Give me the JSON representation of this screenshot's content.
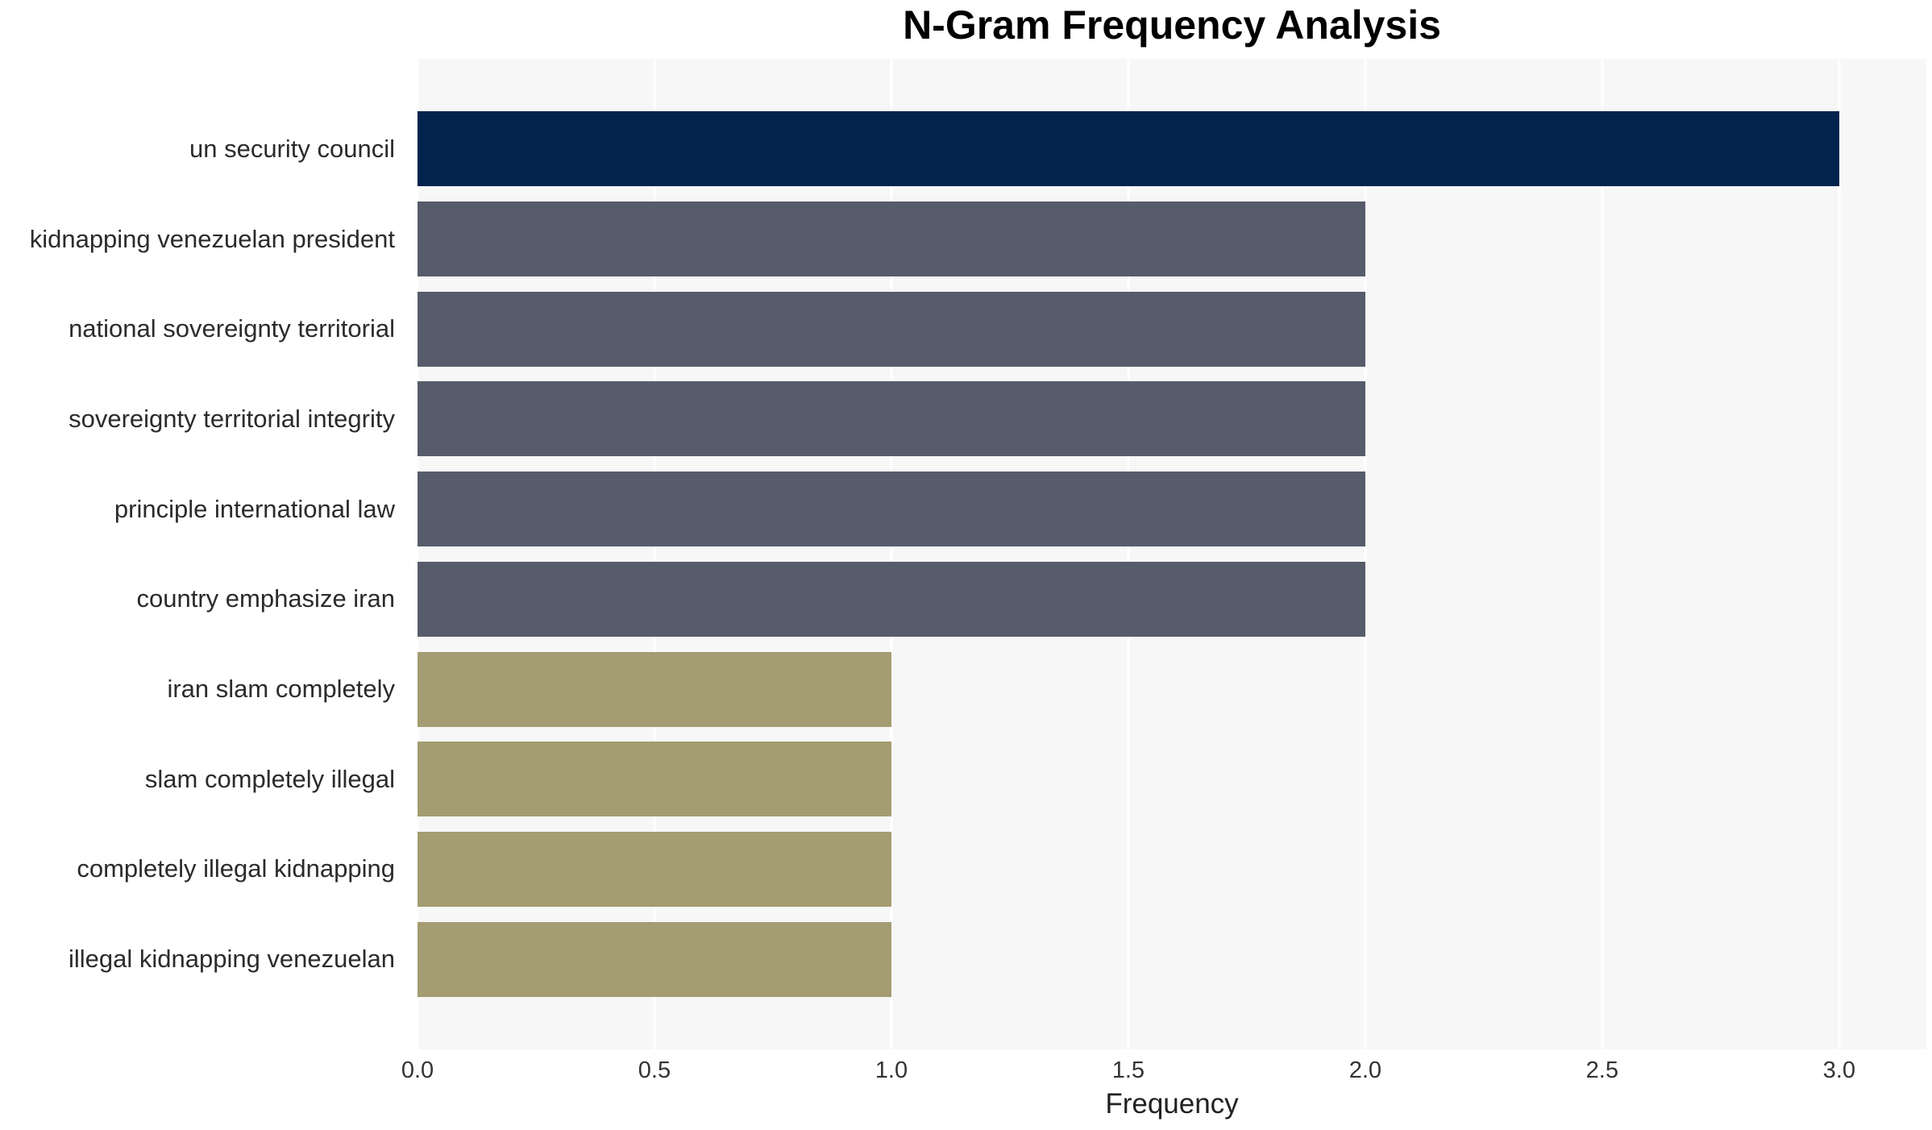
{
  "chart_data": {
    "type": "bar",
    "orientation": "horizontal",
    "title": "N-Gram Frequency Analysis",
    "xlabel": "Frequency",
    "ylabel": "",
    "categories": [
      "un security council",
      "kidnapping venezuelan president",
      "national sovereignty territorial",
      "sovereignty territorial integrity",
      "principle international law",
      "country emphasize iran",
      "iran slam completely",
      "slam completely illegal",
      "completely illegal kidnapping",
      "illegal kidnapping venezuelan"
    ],
    "values": [
      3.0,
      2.0,
      2.0,
      2.0,
      2.0,
      2.0,
      1.0,
      1.0,
      1.0,
      1.0
    ],
    "bar_colors": [
      "#02234d",
      "#565c6a",
      "#565c6a",
      "#565c6a",
      "#565c6a",
      "#565c6a",
      "#a49c72",
      "#a49c72",
      "#a49c72",
      "#a49c72"
    ],
    "xticks": [
      0.0,
      0.5,
      1.0,
      1.5,
      2.0,
      2.5,
      3.0
    ],
    "xtick_labels": [
      "0.0",
      "0.5",
      "1.0",
      "1.5",
      "2.0",
      "2.5",
      "3.0"
    ],
    "xlim": [
      0,
      3.184
    ],
    "grid": "vertical",
    "legend": null,
    "colors": {
      "plot_background": "#f7f7f8",
      "figure_background": "#ffffff",
      "gridline": "#ffffff",
      "navy": "#02234d",
      "slate": "#565c6a",
      "olive": "#a49c72",
      "label_text": "#2b2b2b",
      "tick_text": "#333333",
      "title_text": "#000000"
    }
  }
}
